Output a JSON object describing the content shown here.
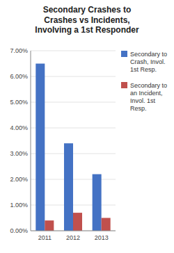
{
  "chart_data": {
    "type": "bar",
    "title": "Secondary Crashes to\nCrashes vs Incidents,\nInvolving a 1st Responder",
    "categories": [
      "2011",
      "2012",
      "2013"
    ],
    "series": [
      {
        "name": "Secondary to\nCrash, Invol.\n1st Resp.",
        "color": "#4472C4",
        "values": [
          0.065,
          0.034,
          0.022
        ]
      },
      {
        "name": "Secondary to\nan Incident,\nInvol. 1st\nResp.",
        "color": "#C0504D",
        "values": [
          0.004,
          0.007,
          0.005
        ]
      }
    ],
    "ylim": [
      0,
      0.07
    ],
    "yticks": [
      {
        "value": 0.0,
        "label": "0.00%"
      },
      {
        "value": 0.01,
        "label": "1.00%"
      },
      {
        "value": 0.02,
        "label": "2.00%"
      },
      {
        "value": 0.03,
        "label": "3.00%"
      },
      {
        "value": 0.04,
        "label": "4.00%"
      },
      {
        "value": 0.05,
        "label": "5.00%"
      },
      {
        "value": 0.06,
        "label": "6.00%"
      },
      {
        "value": 0.07,
        "label": "7.00%"
      }
    ],
    "grid": true,
    "legend": "right"
  }
}
